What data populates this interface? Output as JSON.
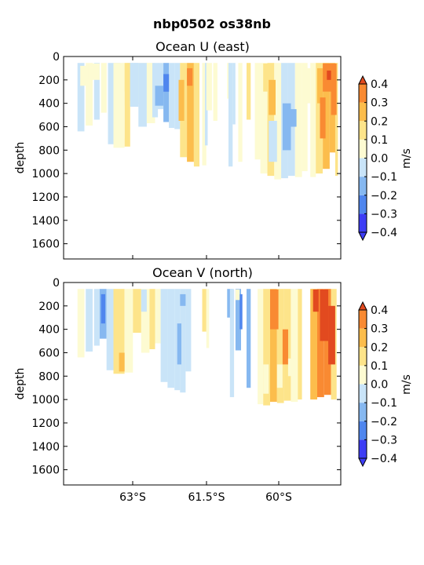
{
  "figure": {
    "suptitle": "nbp0502 os38nb"
  },
  "chart_data": [
    {
      "type": "heatmap",
      "subtype": "filled-contour",
      "title": "Ocean U (east)",
      "ylabel": "depth",
      "yticks": [
        0,
        200,
        400,
        600,
        800,
        1000,
        1200,
        1400,
        1600
      ],
      "ylim": [
        1730,
        0
      ],
      "xticks": [],
      "colorbar": {
        "label": "m/s",
        "ticks": [
          "0.4",
          "0.3",
          "0.2",
          "0.1",
          "0.0",
          "−0.1",
          "−0.2",
          "−0.3",
          "−0.4"
        ],
        "levels": [
          -0.4,
          -0.3,
          -0.2,
          -0.1,
          0.0,
          0.1,
          0.2,
          0.3,
          0.4
        ],
        "colors": [
          "#3d3df5",
          "#4f86ee",
          "#86b8f0",
          "#c9e4f8",
          "#fdfbd2",
          "#fde48a",
          "#fcbd4c",
          "#f98a32",
          "#e24a1f"
        ],
        "extend": "both"
      },
      "columns": [
        {
          "x": 0.05,
          "w": 0.025,
          "bottom": 640,
          "v": -0.05
        },
        {
          "x": 0.08,
          "w": 0.025,
          "bottom": 590,
          "v": 0.05
        },
        {
          "x": 0.11,
          "w": 0.02,
          "bottom": 540,
          "v": -0.05
        },
        {
          "x": 0.135,
          "w": 0.02,
          "bottom": 480,
          "v": 0.05
        },
        {
          "x": 0.16,
          "w": 0.02,
          "bottom": 750,
          "v": -0.1
        },
        {
          "x": 0.18,
          "w": 0.025,
          "bottom": 510,
          "v": -0.05
        },
        {
          "x": 0.21,
          "w": 0.02,
          "bottom": 420,
          "v": 0.05
        },
        {
          "x": 0.23,
          "w": 0.02,
          "bottom": 380,
          "v": -0.05
        },
        {
          "x": 0.25,
          "w": 0.02,
          "bottom": 410,
          "v": -0.05
        },
        {
          "x": 0.27,
          "w": 0.02,
          "bottom": 390,
          "v": 0.05
        },
        {
          "x": 0.29,
          "w": 0.02,
          "bottom": 440,
          "v": 0.0
        },
        {
          "x": 0.31,
          "w": 0.02,
          "bottom": 570,
          "v": 0.05
        },
        {
          "x": 0.18,
          "w": 0.04,
          "bottom": 780,
          "v": 0.05
        },
        {
          "x": 0.22,
          "w": 0.02,
          "bottom": 770,
          "v": 0.15
        },
        {
          "x": 0.24,
          "w": 0.03,
          "bottom": 430,
          "v": -0.05
        },
        {
          "x": 0.27,
          "w": 0.03,
          "bottom": 600,
          "v": -0.05
        },
        {
          "x": 0.3,
          "w": 0.02,
          "bottom": 570,
          "v": 0.0
        },
        {
          "x": 0.32,
          "w": 0.02,
          "bottom": 520,
          "v": -0.1
        },
        {
          "x": 0.34,
          "w": 0.02,
          "bottom": 450,
          "v": -0.05
        },
        {
          "x": 0.36,
          "w": 0.02,
          "bottom": 560,
          "v": -0.15
        },
        {
          "x": 0.38,
          "w": 0.02,
          "bottom": 610,
          "v": -0.1
        },
        {
          "x": 0.4,
          "w": 0.02,
          "bottom": 620,
          "v": -0.05
        },
        {
          "x": 0.42,
          "w": 0.025,
          "bottom": 860,
          "v": 0.15
        },
        {
          "x": 0.445,
          "w": 0.025,
          "bottom": 900,
          "v": 0.25
        },
        {
          "x": 0.47,
          "w": 0.02,
          "bottom": 940,
          "v": 0.15
        },
        {
          "x": 0.5,
          "w": 0.015,
          "bottom": 930,
          "v": 0.05
        },
        {
          "x": 0.51,
          "w": 0.01,
          "bottom": 760,
          "v": -0.05
        },
        {
          "x": 0.515,
          "w": 0.02,
          "bottom": 460,
          "v": 0.05
        },
        {
          "x": 0.54,
          "w": 0.015,
          "bottom": 550,
          "v": 0.0
        },
        {
          "x": 0.59,
          "w": 0.01,
          "bottom": 360,
          "v": 0.05
        },
        {
          "x": 0.595,
          "w": 0.015,
          "bottom": 940,
          "v": -0.05
        },
        {
          "x": 0.61,
          "w": 0.01,
          "bottom": 580,
          "v": -0.05
        },
        {
          "x": 0.63,
          "w": 0.015,
          "bottom": 900,
          "v": 0.05
        },
        {
          "x": 0.66,
          "w": 0.015,
          "bottom": 540,
          "v": 0.15
        },
        {
          "x": 0.69,
          "w": 0.02,
          "bottom": 880,
          "v": 0.05
        },
        {
          "x": 0.71,
          "w": 0.025,
          "bottom": 1000,
          "v": 0.05
        },
        {
          "x": 0.735,
          "w": 0.025,
          "bottom": 1020,
          "v": 0.15
        },
        {
          "x": 0.76,
          "w": 0.025,
          "bottom": 1050,
          "v": 0.0
        },
        {
          "x": 0.785,
          "w": 0.025,
          "bottom": 1040,
          "v": -0.05
        },
        {
          "x": 0.81,
          "w": 0.025,
          "bottom": 1020,
          "v": -0.05
        },
        {
          "x": 0.835,
          "w": 0.025,
          "bottom": 1030,
          "v": 0.0
        },
        {
          "x": 0.86,
          "w": 0.02,
          "bottom": 980,
          "v": 0.05
        },
        {
          "x": 0.89,
          "w": 0.02,
          "bottom": 1030,
          "v": 0.05
        },
        {
          "x": 0.91,
          "w": 0.025,
          "bottom": 1000,
          "v": 0.15
        },
        {
          "x": 0.935,
          "w": 0.025,
          "bottom": 960,
          "v": 0.25
        },
        {
          "x": 0.96,
          "w": 0.02,
          "bottom": 820,
          "v": 0.25
        },
        {
          "x": 0.98,
          "w": 0.01,
          "bottom": 1020,
          "v": 0.15
        }
      ],
      "patches": [
        {
          "x": 0.915,
          "w": 0.02,
          "top": 100,
          "bottom": 400,
          "v": 0.25
        },
        {
          "x": 0.935,
          "w": 0.03,
          "top": 60,
          "bottom": 300,
          "v": 0.35
        },
        {
          "x": 0.95,
          "w": 0.02,
          "top": 120,
          "bottom": 200,
          "v": 0.45
        },
        {
          "x": 0.965,
          "w": 0.02,
          "top": 60,
          "bottom": 500,
          "v": 0.35
        },
        {
          "x": 0.925,
          "w": 0.02,
          "top": 350,
          "bottom": 700,
          "v": 0.35
        },
        {
          "x": 0.415,
          "w": 0.02,
          "top": 200,
          "bottom": 550,
          "v": 0.25
        },
        {
          "x": 0.445,
          "w": 0.02,
          "top": 100,
          "bottom": 250,
          "v": 0.35
        },
        {
          "x": 0.87,
          "w": 0.02,
          "top": 100,
          "bottom": 400,
          "v": 0.05
        },
        {
          "x": 0.72,
          "w": 0.03,
          "top": 60,
          "bottom": 300,
          "v": 0.15
        },
        {
          "x": 0.74,
          "w": 0.025,
          "top": 200,
          "bottom": 500,
          "v": 0.25
        },
        {
          "x": 0.79,
          "w": 0.03,
          "top": 400,
          "bottom": 800,
          "v": -0.15
        },
        {
          "x": 0.74,
          "w": 0.03,
          "top": 550,
          "bottom": 900,
          "v": -0.05
        },
        {
          "x": 0.82,
          "w": 0.02,
          "top": 450,
          "bottom": 600,
          "v": -0.15
        },
        {
          "x": 0.36,
          "w": 0.02,
          "top": 150,
          "bottom": 300,
          "v": -0.25
        },
        {
          "x": 0.33,
          "w": 0.03,
          "top": 250,
          "bottom": 420,
          "v": -0.15
        },
        {
          "x": 0.2,
          "w": 0.02,
          "top": 300,
          "bottom": 700,
          "v": 0.05
        },
        {
          "x": 0.09,
          "w": 0.04,
          "top": 60,
          "bottom": 200,
          "v": 0.05
        },
        {
          "x": 0.06,
          "w": 0.03,
          "top": 80,
          "bottom": 250,
          "v": 0.05
        }
      ]
    },
    {
      "type": "heatmap",
      "subtype": "filled-contour",
      "title": "Ocean V (north)",
      "ylabel": "depth",
      "yticks": [
        0,
        200,
        400,
        600,
        800,
        1000,
        1200,
        1400,
        1600
      ],
      "ylim": [
        1730,
        0
      ],
      "xticks": [
        "63°S",
        "61.5°S",
        "60°S"
      ],
      "colorbar": {
        "label": "m/s",
        "ticks": [
          "0.4",
          "0.3",
          "0.2",
          "0.1",
          "0.0",
          "−0.1",
          "−0.2",
          "−0.3",
          "−0.4"
        ],
        "levels": [
          -0.4,
          -0.3,
          -0.2,
          -0.1,
          0.0,
          0.1,
          0.2,
          0.3,
          0.4
        ],
        "colors": [
          "#3d3df5",
          "#4f86ee",
          "#86b8f0",
          "#c9e4f8",
          "#fdfbd2",
          "#fde48a",
          "#fcbd4c",
          "#f98a32",
          "#e24a1f"
        ],
        "extend": "both"
      },
      "columns": [
        {
          "x": 0.05,
          "w": 0.025,
          "bottom": 640,
          "v": 0.05
        },
        {
          "x": 0.08,
          "w": 0.025,
          "bottom": 590,
          "v": -0.05
        },
        {
          "x": 0.11,
          "w": 0.02,
          "bottom": 540,
          "v": -0.05
        },
        {
          "x": 0.13,
          "w": 0.025,
          "bottom": 480,
          "v": -0.15
        },
        {
          "x": 0.155,
          "w": 0.025,
          "bottom": 750,
          "v": -0.05
        },
        {
          "x": 0.18,
          "w": 0.04,
          "bottom": 780,
          "v": 0.15
        },
        {
          "x": 0.22,
          "w": 0.03,
          "bottom": 770,
          "v": 0.05
        },
        {
          "x": 0.25,
          "w": 0.03,
          "bottom": 430,
          "v": 0.15
        },
        {
          "x": 0.28,
          "w": 0.03,
          "bottom": 600,
          "v": 0.05
        },
        {
          "x": 0.31,
          "w": 0.02,
          "bottom": 570,
          "v": 0.15
        },
        {
          "x": 0.33,
          "w": 0.02,
          "bottom": 520,
          "v": 0.05
        },
        {
          "x": 0.35,
          "w": 0.025,
          "bottom": 850,
          "v": -0.05
        },
        {
          "x": 0.375,
          "w": 0.025,
          "bottom": 900,
          "v": -0.1
        },
        {
          "x": 0.4,
          "w": 0.02,
          "bottom": 920,
          "v": -0.05
        },
        {
          "x": 0.42,
          "w": 0.02,
          "bottom": 940,
          "v": -0.05
        },
        {
          "x": 0.44,
          "w": 0.02,
          "bottom": 760,
          "v": -0.05
        },
        {
          "x": 0.5,
          "w": 0.015,
          "bottom": 420,
          "v": 0.15
        },
        {
          "x": 0.515,
          "w": 0.01,
          "bottom": 560,
          "v": 0.05
        },
        {
          "x": 0.59,
          "w": 0.02,
          "bottom": 300,
          "v": -0.15
        },
        {
          "x": 0.6,
          "w": 0.015,
          "bottom": 980,
          "v": -0.05
        },
        {
          "x": 0.62,
          "w": 0.02,
          "bottom": 580,
          "v": -0.15
        },
        {
          "x": 0.66,
          "w": 0.015,
          "bottom": 900,
          "v": -0.2
        },
        {
          "x": 0.7,
          "w": 0.02,
          "bottom": 1040,
          "v": 0.05
        },
        {
          "x": 0.72,
          "w": 0.025,
          "bottom": 1050,
          "v": 0.15
        },
        {
          "x": 0.745,
          "w": 0.025,
          "bottom": 1020,
          "v": 0.25
        },
        {
          "x": 0.77,
          "w": 0.025,
          "bottom": 1030,
          "v": 0.15
        },
        {
          "x": 0.795,
          "w": 0.025,
          "bottom": 1010,
          "v": 0.15
        },
        {
          "x": 0.82,
          "w": 0.025,
          "bottom": 1020,
          "v": 0.05
        },
        {
          "x": 0.845,
          "w": 0.015,
          "bottom": 1000,
          "v": 0.15
        },
        {
          "x": 0.89,
          "w": 0.025,
          "bottom": 1000,
          "v": 0.25
        },
        {
          "x": 0.915,
          "w": 0.025,
          "bottom": 980,
          "v": 0.35
        },
        {
          "x": 0.94,
          "w": 0.025,
          "bottom": 960,
          "v": 0.3
        },
        {
          "x": 0.965,
          "w": 0.02,
          "bottom": 1000,
          "v": 0.15
        }
      ],
      "patches": [
        {
          "x": 0.925,
          "w": 0.03,
          "top": 60,
          "bottom": 500,
          "v": 0.45
        },
        {
          "x": 0.955,
          "w": 0.025,
          "top": 200,
          "bottom": 700,
          "v": 0.45
        },
        {
          "x": 0.9,
          "w": 0.02,
          "top": 60,
          "bottom": 250,
          "v": 0.45
        },
        {
          "x": 0.745,
          "w": 0.03,
          "top": 60,
          "bottom": 400,
          "v": 0.35
        },
        {
          "x": 0.79,
          "w": 0.02,
          "top": 400,
          "bottom": 700,
          "v": 0.35
        },
        {
          "x": 0.72,
          "w": 0.02,
          "top": 700,
          "bottom": 950,
          "v": 0.05
        },
        {
          "x": 0.77,
          "w": 0.02,
          "top": 700,
          "bottom": 900,
          "v": 0.05
        },
        {
          "x": 0.81,
          "w": 0.03,
          "top": 650,
          "bottom": 800,
          "v": 0.05
        },
        {
          "x": 0.135,
          "w": 0.015,
          "top": 100,
          "bottom": 350,
          "v": -0.3
        },
        {
          "x": 0.635,
          "w": 0.01,
          "top": 100,
          "bottom": 400,
          "v": -0.3
        },
        {
          "x": 0.41,
          "w": 0.015,
          "top": 350,
          "bottom": 700,
          "v": -0.15
        },
        {
          "x": 0.2,
          "w": 0.02,
          "top": 600,
          "bottom": 760,
          "v": 0.25
        },
        {
          "x": 0.28,
          "w": 0.02,
          "top": 60,
          "bottom": 250,
          "v": -0.05
        },
        {
          "x": 0.42,
          "w": 0.02,
          "top": 100,
          "bottom": 200,
          "v": -0.15
        },
        {
          "x": 0.62,
          "w": 0.015,
          "top": 60,
          "bottom": 150,
          "v": 0.05
        }
      ]
    }
  ]
}
